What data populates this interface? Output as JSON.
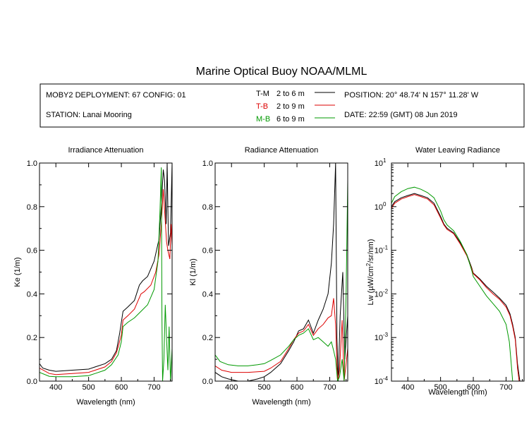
{
  "title": "Marine Optical Buoy NOAA/MLML",
  "header": {
    "deployment": "MOBY2 DEPLOYMENT: 67 CONFIG: 01",
    "station": "STATION: Lanai Mooring",
    "position": "POSITION: 20° 48.74' N   157° 11.28' W",
    "date": "DATE: 22:59 (GMT) 08 Jun 2019",
    "legend": [
      {
        "code": "T-M",
        "range": "2 to 6  m",
        "color": "#000000"
      },
      {
        "code": "T-B",
        "range": "2 to 9  m",
        "color": "#dd0000"
      },
      {
        "code": "M-B",
        "range": "6 to 9  m",
        "color": "#009900"
      }
    ]
  },
  "chart_data": [
    {
      "type": "line",
      "title": "Irradiance Attenuation",
      "xlabel": "Wavelength (nm)",
      "ylabel": "Ke  (1/m)",
      "xlim": [
        350,
        755
      ],
      "ylim": [
        0,
        1
      ],
      "xticks": [
        400,
        500,
        600,
        700
      ],
      "yticks": [
        "0.0",
        "0.2",
        "0.4",
        "0.6",
        "0.8",
        "1.0"
      ],
      "series": [
        {
          "name": "T-M",
          "color": "#000000",
          "points": [
            [
              350,
              0.08
            ],
            [
              360,
              0.06
            ],
            [
              380,
              0.05
            ],
            [
              400,
              0.045
            ],
            [
              450,
              0.05
            ],
            [
              500,
              0.055
            ],
            [
              520,
              0.065
            ],
            [
              550,
              0.08
            ],
            [
              570,
              0.1
            ],
            [
              585,
              0.14
            ],
            [
              595,
              0.22
            ],
            [
              605,
              0.32
            ],
            [
              620,
              0.34
            ],
            [
              640,
              0.37
            ],
            [
              655,
              0.44
            ],
            [
              665,
              0.46
            ],
            [
              680,
              0.48
            ],
            [
              700,
              0.55
            ],
            [
              715,
              0.65
            ],
            [
              722,
              0.8
            ],
            [
              728,
              0.97
            ],
            [
              732,
              0.92
            ],
            [
              737,
              0.72
            ],
            [
              740,
              1.0
            ],
            [
              744,
              0.62
            ],
            [
              750,
              0.68
            ],
            [
              755,
              1.0
            ]
          ]
        },
        {
          "name": "T-B",
          "color": "#dd0000",
          "points": [
            [
              350,
              0.06
            ],
            [
              380,
              0.035
            ],
            [
              400,
              0.03
            ],
            [
              450,
              0.035
            ],
            [
              500,
              0.04
            ],
            [
              520,
              0.05
            ],
            [
              550,
              0.065
            ],
            [
              570,
              0.09
            ],
            [
              585,
              0.13
            ],
            [
              600,
              0.21
            ],
            [
              605,
              0.28
            ],
            [
              620,
              0.3
            ],
            [
              640,
              0.33
            ],
            [
              660,
              0.4
            ],
            [
              670,
              0.41
            ],
            [
              690,
              0.44
            ],
            [
              705,
              0.5
            ],
            [
              715,
              0.58
            ],
            [
              722,
              0.72
            ],
            [
              728,
              0.88
            ],
            [
              733,
              0.76
            ],
            [
              738,
              0.64
            ],
            [
              742,
              0.6
            ],
            [
              748,
              0.56
            ],
            [
              752,
              0.72
            ],
            [
              755,
              0.62
            ]
          ]
        },
        {
          "name": "M-B",
          "color": "#009900",
          "points": [
            [
              350,
              0.04
            ],
            [
              380,
              0.022
            ],
            [
              400,
              0.02
            ],
            [
              450,
              0.02
            ],
            [
              500,
              0.025
            ],
            [
              520,
              0.035
            ],
            [
              550,
              0.05
            ],
            [
              570,
              0.075
            ],
            [
              590,
              0.12
            ],
            [
              600,
              0.18
            ],
            [
              605,
              0.25
            ],
            [
              620,
              0.27
            ],
            [
              640,
              0.29
            ],
            [
              660,
              0.32
            ],
            [
              680,
              0.35
            ],
            [
              700,
              0.42
            ],
            [
              712,
              0.55
            ],
            [
              718,
              0.78
            ],
            [
              722,
              0.98
            ],
            [
              724,
              0.3
            ],
            [
              726,
              0.0
            ],
            [
              730,
              0.1
            ],
            [
              734,
              0.35
            ],
            [
              738,
              0.2
            ],
            [
              742,
              0.05
            ],
            [
              746,
              0.25
            ],
            [
              750,
              0.0
            ],
            [
              755,
              0.15
            ]
          ]
        }
      ]
    },
    {
      "type": "line",
      "title": "Radiance Attenuation",
      "xlabel": "Wavelength (nm)",
      "ylabel": "Kl  (1/m)",
      "xlim": [
        350,
        755
      ],
      "ylim": [
        0,
        1
      ],
      "xticks": [
        400,
        500,
        600,
        700
      ],
      "yticks": [
        "0.0",
        "0.2",
        "0.4",
        "0.6",
        "0.8",
        "1.0"
      ],
      "series": [
        {
          "name": "T-M",
          "color": "#000000",
          "points": [
            [
              350,
              0.04
            ],
            [
              370,
              0.02
            ],
            [
              390,
              0.01
            ],
            [
              420,
              0.0
            ],
            [
              450,
              0.0
            ],
            [
              480,
              0.01
            ],
            [
              500,
              0.02
            ],
            [
              520,
              0.04
            ],
            [
              550,
              0.08
            ],
            [
              575,
              0.14
            ],
            [
              590,
              0.18
            ],
            [
              605,
              0.23
            ],
            [
              620,
              0.24
            ],
            [
              635,
              0.28
            ],
            [
              650,
              0.22
            ],
            [
              665,
              0.28
            ],
            [
              680,
              0.33
            ],
            [
              695,
              0.4
            ],
            [
              705,
              0.54
            ],
            [
              712,
              0.72
            ],
            [
              718,
              1.0
            ],
            [
              722,
              0.2
            ],
            [
              726,
              0.0
            ],
            [
              732,
              0.3
            ],
            [
              740,
              0.5
            ],
            [
              746,
              0.1
            ],
            [
              755,
              0.3
            ]
          ]
        },
        {
          "name": "T-B",
          "color": "#dd0000",
          "points": [
            [
              350,
              0.07
            ],
            [
              370,
              0.05
            ],
            [
              400,
              0.04
            ],
            [
              450,
              0.04
            ],
            [
              500,
              0.045
            ],
            [
              520,
              0.06
            ],
            [
              550,
              0.09
            ],
            [
              575,
              0.15
            ],
            [
              590,
              0.19
            ],
            [
              605,
              0.22
            ],
            [
              620,
              0.23
            ],
            [
              635,
              0.26
            ],
            [
              650,
              0.21
            ],
            [
              665,
              0.24
            ],
            [
              680,
              0.26
            ],
            [
              695,
              0.29
            ],
            [
              705,
              0.3
            ],
            [
              712,
              0.38
            ],
            [
              718,
              0.26
            ],
            [
              724,
              0.0
            ],
            [
              730,
              0.05
            ],
            [
              738,
              0.28
            ],
            [
              744,
              0.0
            ],
            [
              750,
              0.08
            ],
            [
              755,
              0.15
            ]
          ]
        },
        {
          "name": "M-B",
          "color": "#009900",
          "points": [
            [
              350,
              0.12
            ],
            [
              365,
              0.09
            ],
            [
              390,
              0.075
            ],
            [
              420,
              0.07
            ],
            [
              450,
              0.07
            ],
            [
              480,
              0.075
            ],
            [
              500,
              0.08
            ],
            [
              520,
              0.095
            ],
            [
              550,
              0.12
            ],
            [
              575,
              0.16
            ],
            [
              590,
              0.19
            ],
            [
              605,
              0.21
            ],
            [
              620,
              0.22
            ],
            [
              635,
              0.24
            ],
            [
              650,
              0.19
            ],
            [
              665,
              0.2
            ],
            [
              680,
              0.18
            ],
            [
              695,
              0.16
            ],
            [
              705,
              0.18
            ],
            [
              712,
              0.14
            ],
            [
              718,
              0.1
            ],
            [
              724,
              0.0
            ],
            [
              730,
              0.02
            ],
            [
              738,
              0.1
            ],
            [
              744,
              0.0
            ],
            [
              750,
              0.4
            ],
            [
              755,
              0.92
            ]
          ]
        }
      ]
    },
    {
      "type": "line",
      "title": "Water Leaving Radiance",
      "xlabel": "Wavelength (nm)",
      "ylabel": "Lw  (µW/cm²/sr/nm)",
      "ylabel_main": "Lw  (",
      "ylabel_mu": "µ",
      "ylabel_rest": "W/cm",
      "ylabel_sup": "2",
      "ylabel_end": "/sr/nm)",
      "yscale": "log",
      "xlim": [
        350,
        755
      ],
      "ylim": [
        0.0001,
        10
      ],
      "xticks": [
        400,
        500,
        600,
        700
      ],
      "yticks": [
        {
          "value": 10,
          "base": "10",
          "exp": "1"
        },
        {
          "value": 1,
          "base": "10",
          "exp": "0"
        },
        {
          "value": 0.1,
          "base": "10",
          "exp": "-1"
        },
        {
          "value": 0.01,
          "base": "10",
          "exp": "-2"
        },
        {
          "value": 0.001,
          "base": "10",
          "exp": "-3"
        },
        {
          "value": 0.0001,
          "base": "10",
          "exp": "-4"
        }
      ],
      "series": [
        {
          "name": "T-M",
          "color": "#000000",
          "points": [
            [
              350,
              1.0
            ],
            [
              360,
              1.3
            ],
            [
              380,
              1.6
            ],
            [
              400,
              1.8
            ],
            [
              420,
              2.0
            ],
            [
              440,
              1.8
            ],
            [
              460,
              1.6
            ],
            [
              480,
              1.2
            ],
            [
              500,
              0.6
            ],
            [
              510,
              0.4
            ],
            [
              520,
              0.32
            ],
            [
              540,
              0.25
            ],
            [
              560,
              0.15
            ],
            [
              580,
              0.08
            ],
            [
              595,
              0.04
            ],
            [
              600,
              0.03
            ],
            [
              620,
              0.022
            ],
            [
              640,
              0.015
            ],
            [
              660,
              0.011
            ],
            [
              680,
              0.008
            ],
            [
              700,
              0.0055
            ],
            [
              712,
              0.0035
            ],
            [
              720,
              0.002
            ],
            [
              728,
              0.001
            ],
            [
              735,
              0.00025
            ],
            [
              742,
              0.0001
            ]
          ]
        },
        {
          "name": "T-B",
          "color": "#dd0000",
          "points": [
            [
              350,
              0.9
            ],
            [
              360,
              1.2
            ],
            [
              380,
              1.5
            ],
            [
              400,
              1.7
            ],
            [
              420,
              1.9
            ],
            [
              440,
              1.7
            ],
            [
              460,
              1.5
            ],
            [
              480,
              1.1
            ],
            [
              500,
              0.55
            ],
            [
              510,
              0.38
            ],
            [
              520,
              0.3
            ],
            [
              540,
              0.24
            ],
            [
              560,
              0.14
            ],
            [
              580,
              0.075
            ],
            [
              595,
              0.038
            ],
            [
              600,
              0.029
            ],
            [
              620,
              0.021
            ],
            [
              640,
              0.014
            ],
            [
              660,
              0.01
            ],
            [
              680,
              0.0075
            ],
            [
              700,
              0.005
            ],
            [
              712,
              0.0032
            ],
            [
              720,
              0.0018
            ],
            [
              728,
              0.0009
            ],
            [
              735,
              0.0002
            ],
            [
              740,
              0.0001
            ]
          ]
        },
        {
          "name": "M-B",
          "color": "#009900",
          "points": [
            [
              350,
              1.2
            ],
            [
              360,
              1.7
            ],
            [
              380,
              2.2
            ],
            [
              400,
              2.6
            ],
            [
              420,
              2.8
            ],
            [
              440,
              2.5
            ],
            [
              460,
              2.1
            ],
            [
              480,
              1.6
            ],
            [
              500,
              0.8
            ],
            [
              510,
              0.5
            ],
            [
              520,
              0.38
            ],
            [
              540,
              0.28
            ],
            [
              560,
              0.16
            ],
            [
              580,
              0.08
            ],
            [
              595,
              0.035
            ],
            [
              600,
              0.025
            ],
            [
              620,
              0.015
            ],
            [
              640,
              0.009
            ],
            [
              660,
              0.006
            ],
            [
              680,
              0.004
            ],
            [
              700,
              0.002
            ],
            [
              710,
              0.0008
            ],
            [
              715,
              0.0003
            ],
            [
              720,
              0.0001
            ]
          ]
        }
      ]
    }
  ]
}
